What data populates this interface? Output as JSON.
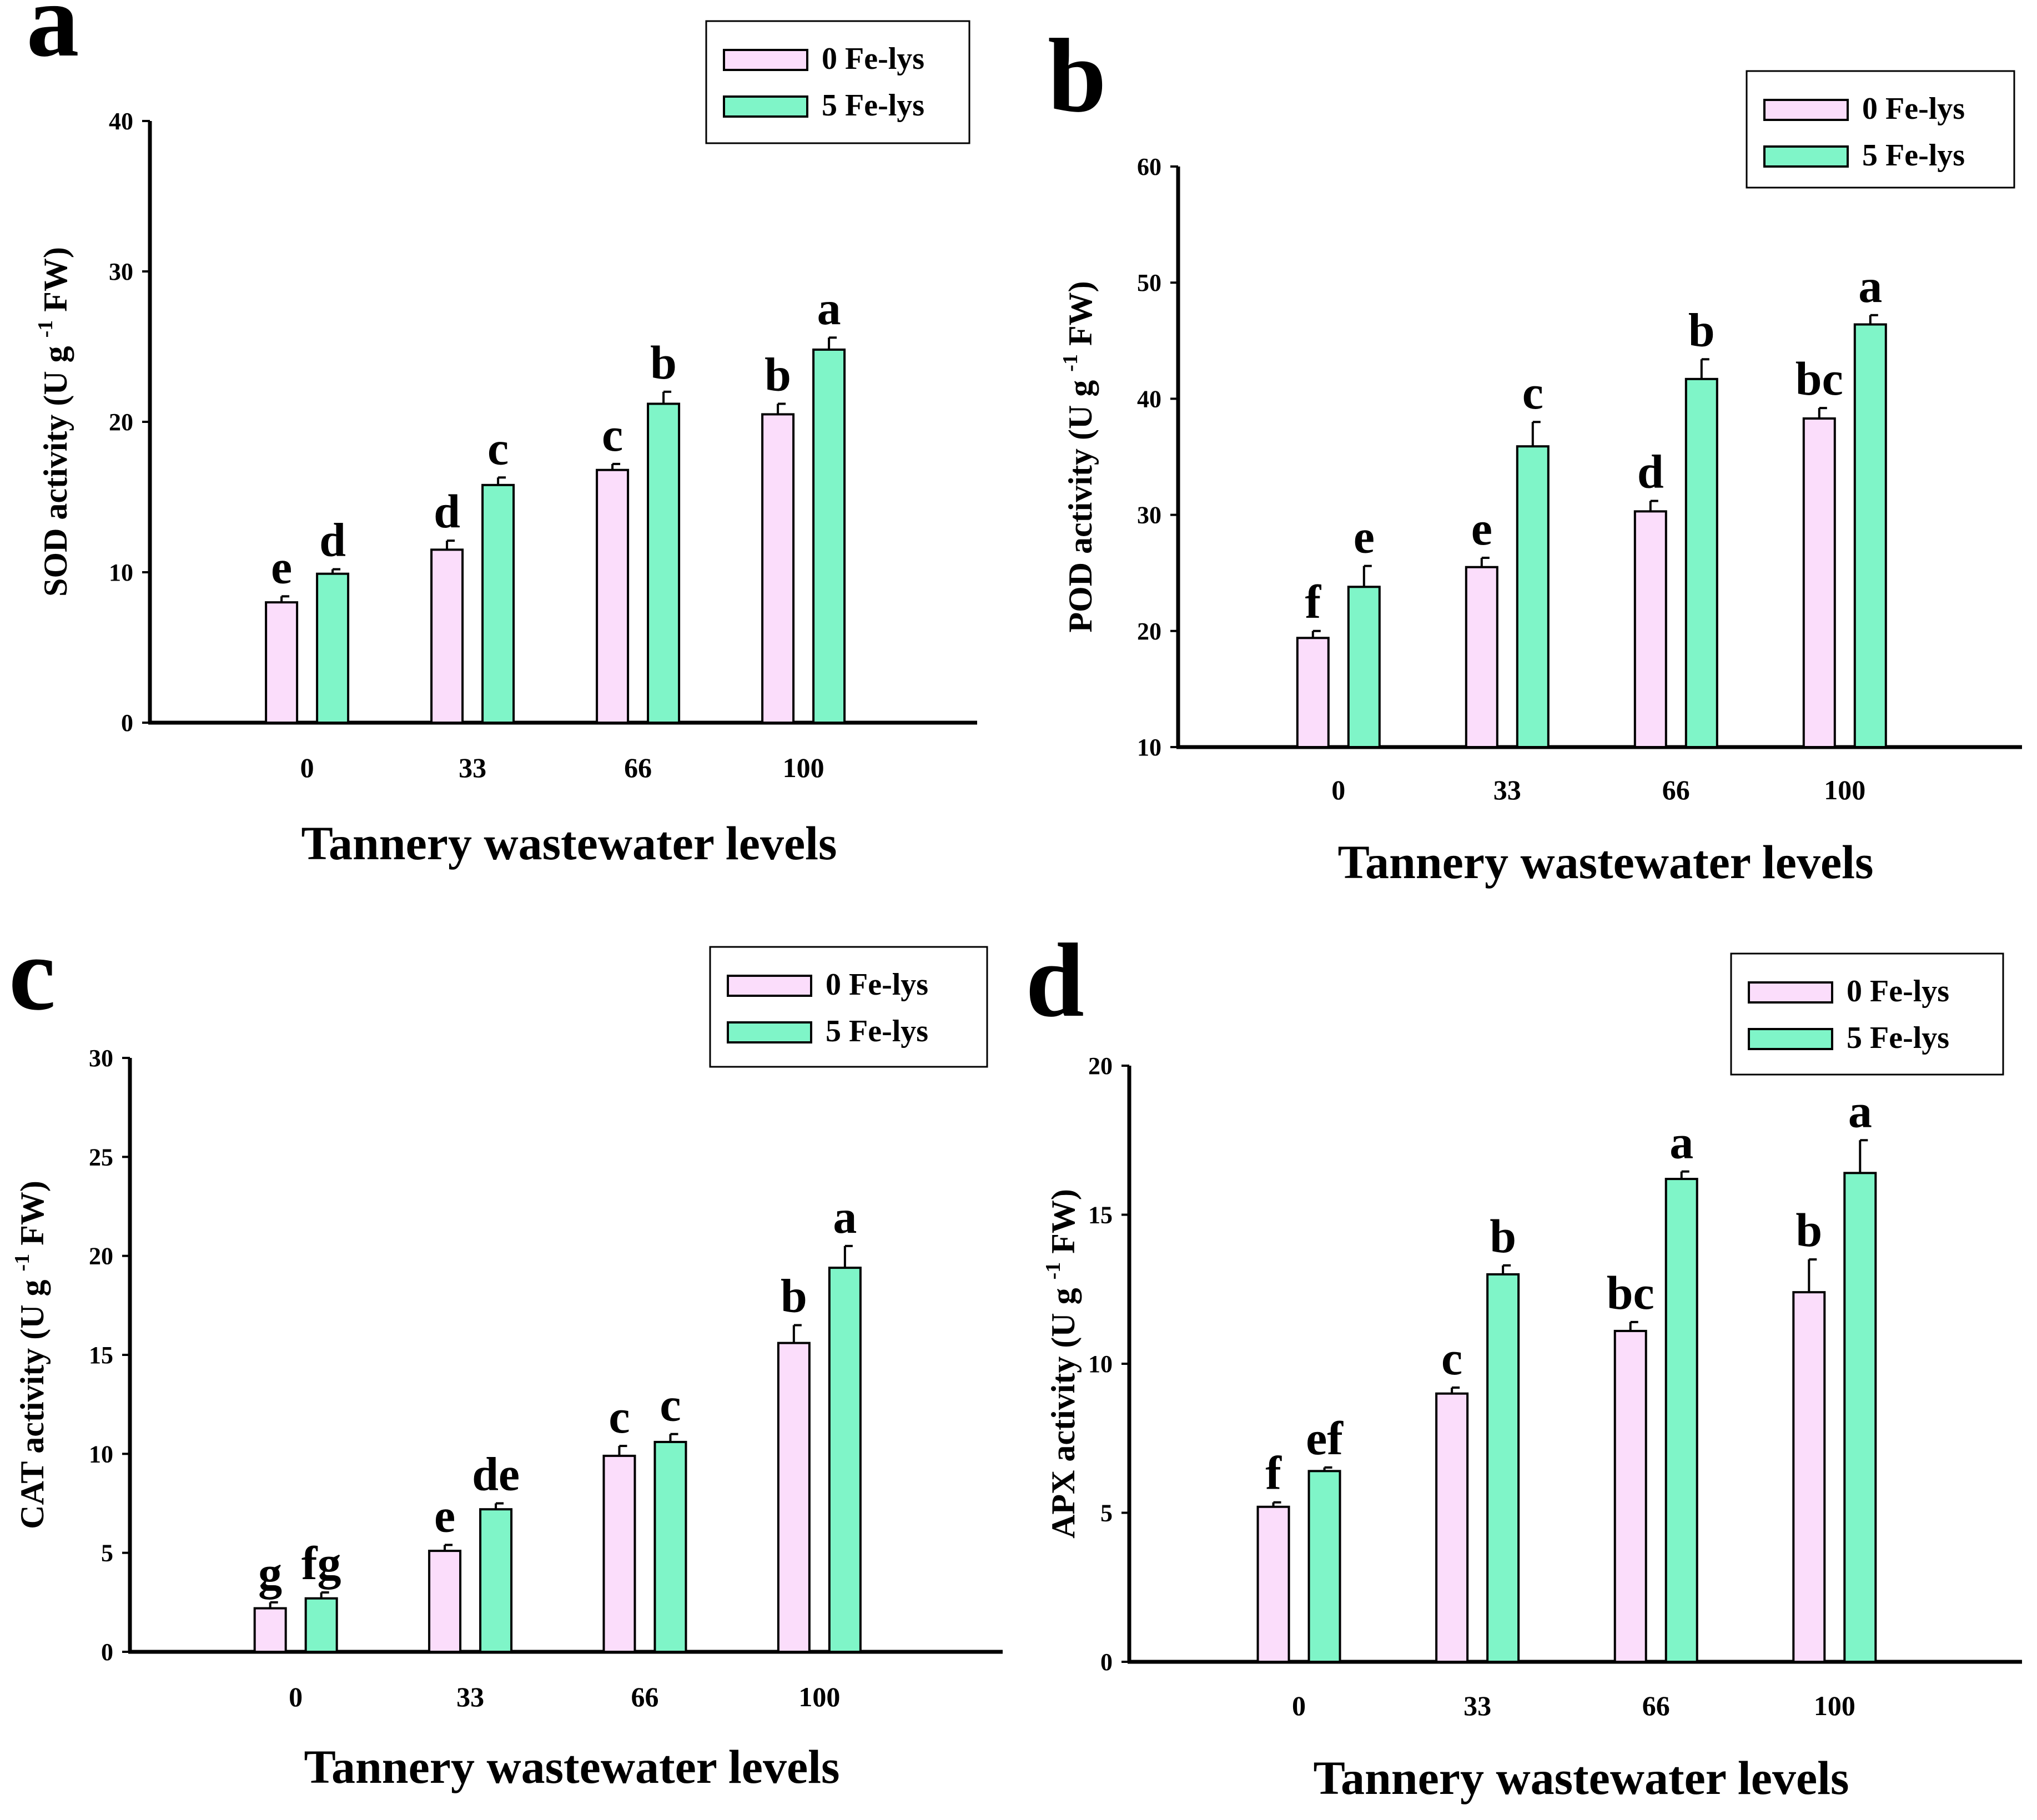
{
  "colors": {
    "zero_fe_lys": "#FBDDFB",
    "five_fe_lys": "#7FF5C8",
    "outline": "#000000"
  },
  "chart_data": [
    {
      "panel": "a",
      "type": "bar",
      "categories": [
        "0",
        "33",
        "66",
        "100"
      ],
      "xlabel": "Tannery wastewater levels",
      "ylabel": {
        "pre": "SOD activity (U g",
        "sup": "-1",
        "post": " FW)"
      },
      "ylim": [
        0,
        40
      ],
      "yticks": [
        0,
        10,
        20,
        30,
        40
      ],
      "legend_position": "top-right",
      "series": [
        {
          "name": "0 Fe-lys",
          "values": [
            8.0,
            11.5,
            16.8,
            20.5
          ],
          "errors": [
            0.4,
            0.6,
            0.4,
            0.7
          ],
          "labels": [
            "e",
            "d",
            "c",
            "b"
          ]
        },
        {
          "name": "5 Fe-lys",
          "values": [
            9.9,
            15.8,
            21.2,
            24.8
          ],
          "errors": [
            0.3,
            0.5,
            0.8,
            0.8
          ],
          "labels": [
            "d",
            "c",
            "b",
            "a"
          ]
        }
      ]
    },
    {
      "panel": "b",
      "type": "bar",
      "categories": [
        "0",
        "33",
        "66",
        "100"
      ],
      "xlabel": "Tannery wastewater levels",
      "ylabel": {
        "pre": "POD activity (U g",
        "sup": "-1",
        "post": " FW)"
      },
      "ylim": [
        10,
        60
      ],
      "yticks": [
        10,
        20,
        30,
        40,
        50,
        60
      ],
      "legend_position": "top-right",
      "series": [
        {
          "name": "0 Fe-lys",
          "values": [
            19.4,
            25.5,
            30.3,
            38.3
          ],
          "errors": [
            0.6,
            0.8,
            0.9,
            0.9
          ],
          "labels": [
            "f",
            "e",
            "d",
            "bc"
          ]
        },
        {
          "name": "5 Fe-lys",
          "values": [
            23.8,
            35.9,
            41.7,
            46.4
          ],
          "errors": [
            1.8,
            2.1,
            1.7,
            0.8
          ],
          "labels": [
            "e",
            "c",
            "b",
            "a"
          ]
        }
      ]
    },
    {
      "panel": "c",
      "type": "bar",
      "categories": [
        "0",
        "33",
        "66",
        "100"
      ],
      "xlabel": "Tannery wastewater levels",
      "ylabel": {
        "pre": "CAT activity (U g",
        "sup": "-1",
        "post": " FW)"
      },
      "ylim": [
        0,
        30
      ],
      "yticks": [
        0,
        5,
        10,
        15,
        20,
        25,
        30
      ],
      "legend_position": "top-right",
      "series": [
        {
          "name": "0 Fe-lys",
          "values": [
            2.2,
            5.1,
            9.9,
            15.6
          ],
          "errors": [
            0.3,
            0.3,
            0.5,
            0.9
          ],
          "labels": [
            "g",
            "e",
            "c",
            "b"
          ]
        },
        {
          "name": "5 Fe-lys",
          "values": [
            2.7,
            7.2,
            10.6,
            19.4
          ],
          "errors": [
            0.3,
            0.3,
            0.4,
            1.1
          ],
          "labels": [
            "fg",
            "de",
            "c",
            "a"
          ]
        }
      ]
    },
    {
      "panel": "d",
      "type": "bar",
      "categories": [
        "0",
        "33",
        "66",
        "100"
      ],
      "xlabel": "Tannery wastewater levels",
      "ylabel": {
        "pre": "APX activity (U g",
        "sup": "-1",
        "post": " FW)"
      },
      "ylim": [
        0,
        20
      ],
      "yticks": [
        0,
        5,
        10,
        15,
        20
      ],
      "legend_position": "top-right",
      "series": [
        {
          "name": "0 Fe-lys",
          "values": [
            5.2,
            9.0,
            11.1,
            12.4
          ],
          "errors": [
            0.15,
            0.2,
            0.3,
            1.1
          ],
          "labels": [
            "f",
            "c",
            "bc",
            "b"
          ]
        },
        {
          "name": "5 Fe-lys",
          "values": [
            6.4,
            13.0,
            16.2,
            16.4
          ],
          "errors": [
            0.12,
            0.3,
            0.25,
            1.1
          ],
          "labels": [
            "ef",
            "b",
            "a",
            "a"
          ]
        }
      ]
    }
  ]
}
